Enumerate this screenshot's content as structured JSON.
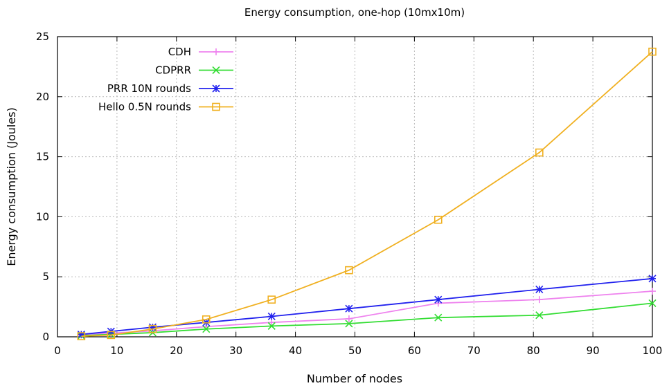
{
  "chart_data": {
    "type": "line",
    "title": "Energy consumption, one-hop (10mx10m)",
    "xlabel": "Number of nodes",
    "ylabel": "Energy consumption (Joules)",
    "xlim": [
      0,
      100
    ],
    "ylim": [
      0,
      25
    ],
    "xticks": [
      "0",
      "10",
      "20",
      "30",
      "40",
      "50",
      "60",
      "70",
      "80",
      "90",
      "100"
    ],
    "yticks": [
      "0",
      "5",
      "10",
      "15",
      "20",
      "25"
    ],
    "grid": true,
    "legend_position": "top-left",
    "x": [
      4,
      9,
      16,
      25,
      36,
      49,
      64,
      81,
      100
    ],
    "series": [
      {
        "name": "CDH",
        "color": "#ee82ee",
        "marker": "plus",
        "values": [
          0.15,
          0.3,
          0.5,
          0.85,
          1.2,
          1.5,
          2.8,
          3.1,
          3.8
        ]
      },
      {
        "name": "CDPRR",
        "color": "#33dd33",
        "marker": "cross",
        "values": [
          0.1,
          0.2,
          0.35,
          0.65,
          0.9,
          1.1,
          1.6,
          1.8,
          2.8
        ]
      },
      {
        "name": "PRR 10N rounds",
        "color": "#2222ee",
        "marker": "star",
        "values": [
          0.2,
          0.45,
          0.8,
          1.2,
          1.7,
          2.35,
          3.1,
          3.95,
          4.85
        ]
      },
      {
        "name": "Hello 0.5N rounds",
        "color": "#f0b020",
        "marker": "square",
        "values": [
          0.05,
          0.15,
          0.65,
          1.45,
          3.1,
          5.55,
          9.75,
          15.35,
          23.75
        ]
      }
    ]
  }
}
